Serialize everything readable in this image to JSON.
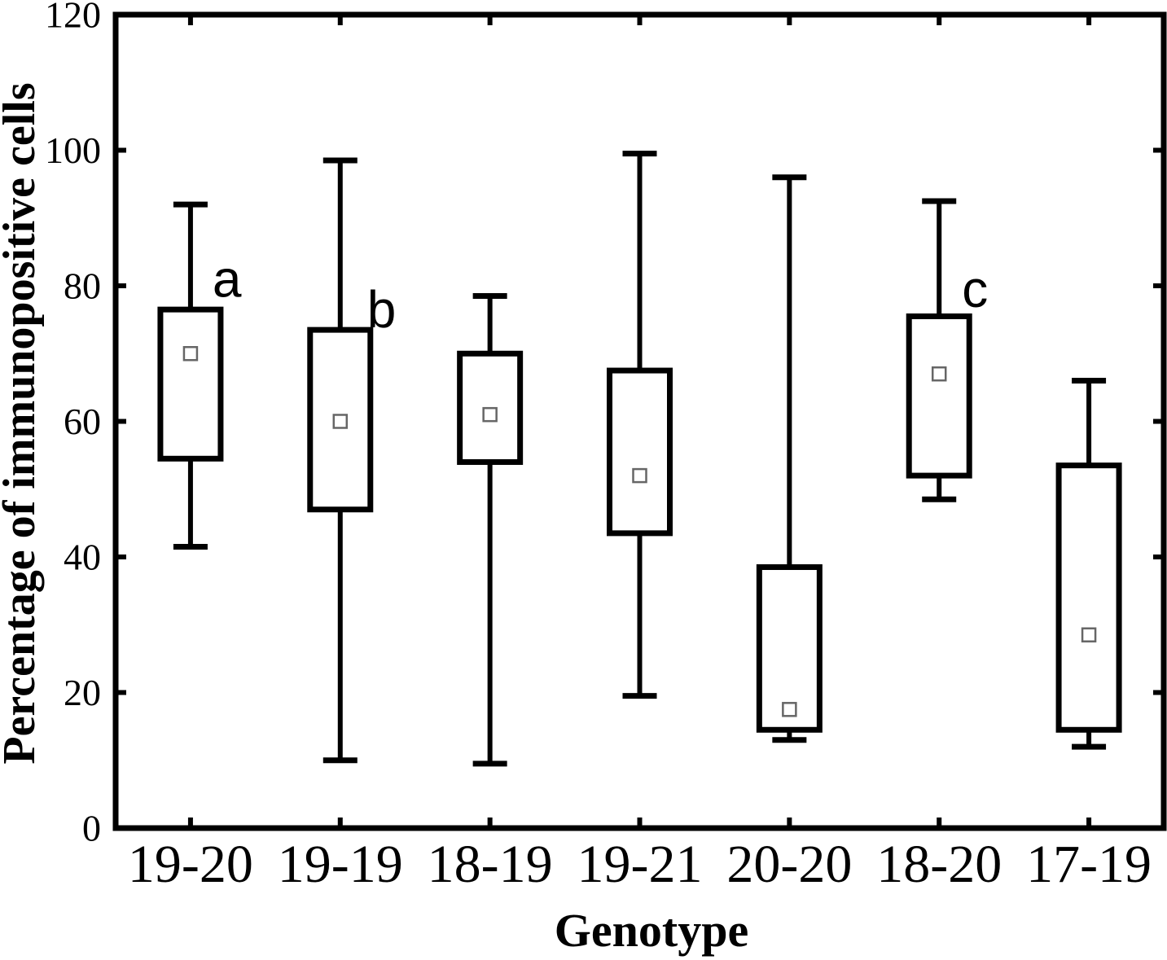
{
  "figure": {
    "background": "#ffffff"
  },
  "chart_data": {
    "type": "box",
    "title": "",
    "xlabel": "Genotype",
    "ylabel": "Percentage of immunopositive cells",
    "ylim": [
      0,
      120
    ],
    "yticks": [
      0,
      20,
      40,
      60,
      80,
      100,
      120
    ],
    "grid": false,
    "legend": "none",
    "categories": [
      "19-20",
      "19-19",
      "18-19",
      "19-21",
      "20-20",
      "18-20",
      "17-19"
    ],
    "boxes": [
      {
        "category": "19-20",
        "whisker_low": 41.5,
        "q1": 54.5,
        "mean": 70,
        "q3": 76.5,
        "whisker_high": 92,
        "letter": "a"
      },
      {
        "category": "19-19",
        "whisker_low": 10,
        "q1": 47,
        "mean": 60,
        "q3": 73.5,
        "whisker_high": 98.5,
        "letter": "b"
      },
      {
        "category": "18-19",
        "whisker_low": 9.5,
        "q1": 54,
        "mean": 61,
        "q3": 70,
        "whisker_high": 78.5,
        "letter": ""
      },
      {
        "category": "19-21",
        "whisker_low": 19.5,
        "q1": 43.5,
        "mean": 52,
        "q3": 67.5,
        "whisker_high": 99.5,
        "letter": ""
      },
      {
        "category": "20-20",
        "whisker_low": 13,
        "q1": 14.5,
        "mean": 17.5,
        "q3": 38.5,
        "whisker_high": 96,
        "letter": ""
      },
      {
        "category": "18-20",
        "whisker_low": 48.5,
        "q1": 52,
        "mean": 67,
        "q3": 75.5,
        "whisker_high": 92.5,
        "letter": "c"
      },
      {
        "category": "17-19",
        "whisker_low": 12,
        "q1": 14.5,
        "mean": 28.5,
        "q3": 53.5,
        "whisker_high": 66,
        "letter": ""
      }
    ],
    "annotations": [
      {
        "text": "a",
        "box_index": 0,
        "dx": 27,
        "value": 81
      },
      {
        "text": "b",
        "box_index": 1,
        "dx": 33,
        "value": 76.5
      },
      {
        "text": "c",
        "box_index": 5,
        "dx": 28,
        "value": 79.5
      }
    ],
    "mean_marker": "open-square",
    "colors": {
      "line": "#000000",
      "box_fill": "#ffffff",
      "mean_marker": "#666666",
      "background": "#ffffff"
    }
  }
}
